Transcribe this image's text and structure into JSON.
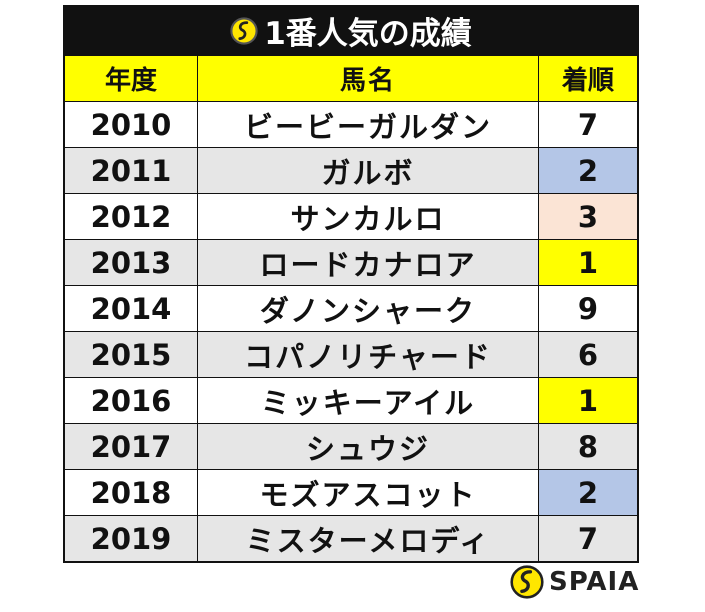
{
  "title": "1番人気の成績",
  "title_icon": "spaia-logo-icon",
  "columns": [
    "年度",
    "馬名",
    "着順"
  ],
  "rows": [
    {
      "year": "2010",
      "horse": "ビービーガルダン",
      "place": "7",
      "row_bg": "#ffffff",
      "place_bg": "#ffffff"
    },
    {
      "year": "2011",
      "horse": "ガルボ",
      "place": "2",
      "row_bg": "#e6e6e6",
      "place_bg": "#b4c6e7"
    },
    {
      "year": "2012",
      "horse": "サンカルロ",
      "place": "3",
      "row_bg": "#ffffff",
      "place_bg": "#fbe4d5"
    },
    {
      "year": "2013",
      "horse": "ロードカナロア",
      "place": "1",
      "row_bg": "#e6e6e6",
      "place_bg": "#ffff00"
    },
    {
      "year": "2014",
      "horse": "ダノンシャーク",
      "place": "9",
      "row_bg": "#ffffff",
      "place_bg": "#ffffff"
    },
    {
      "year": "2015",
      "horse": "コパノリチャード",
      "place": "6",
      "row_bg": "#e6e6e6",
      "place_bg": "#e6e6e6"
    },
    {
      "year": "2016",
      "horse": "ミッキーアイル",
      "place": "1",
      "row_bg": "#ffffff",
      "place_bg": "#ffff00"
    },
    {
      "year": "2017",
      "horse": "シュウジ",
      "place": "8",
      "row_bg": "#e6e6e6",
      "place_bg": "#e6e6e6"
    },
    {
      "year": "2018",
      "horse": "モズアスコット",
      "place": "2",
      "row_bg": "#ffffff",
      "place_bg": "#b4c6e7"
    },
    {
      "year": "2019",
      "horse": "ミスターメロディ",
      "place": "7",
      "row_bg": "#e6e6e6",
      "place_bg": "#e6e6e6"
    }
  ],
  "colors": {
    "header_bg": "#ffff00",
    "title_bg": "#111111",
    "first": "#ffff00",
    "second": "#b4c6e7",
    "third": "#fbe4d5"
  },
  "brand": {
    "name": "SPAIA",
    "icon": "spaia-logo-icon"
  }
}
